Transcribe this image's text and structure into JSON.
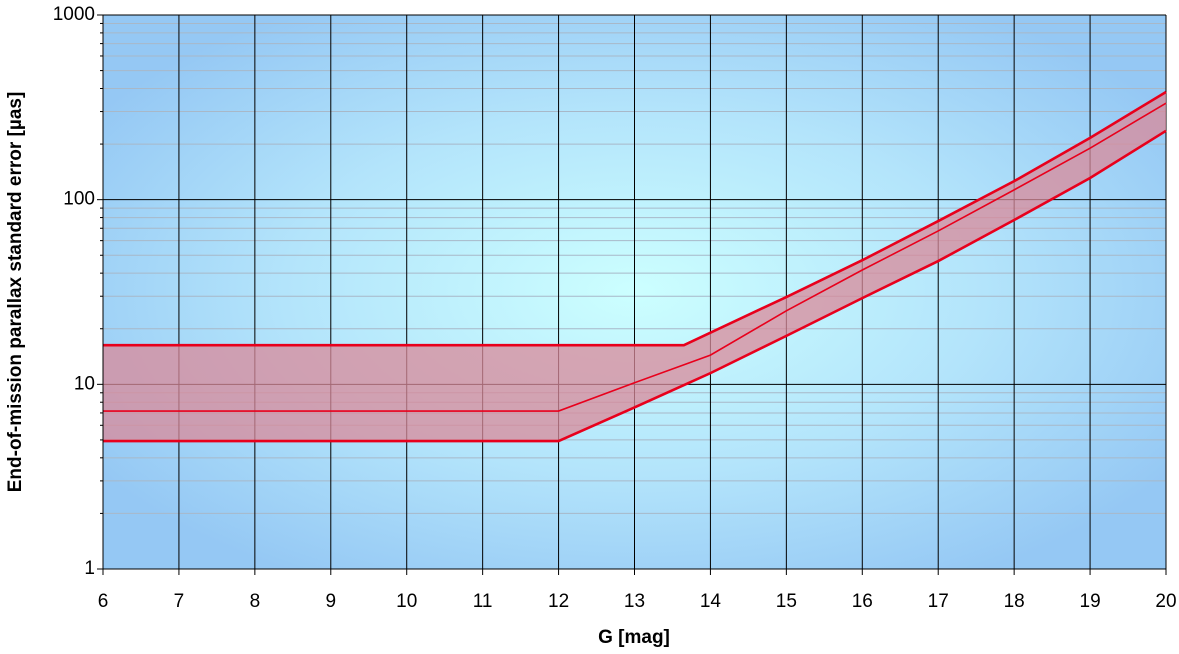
{
  "chart_data": {
    "type": "line",
    "x_label": "G [mag]",
    "y_label": "End-of-mission parallax standard error [µas]",
    "log_y": true,
    "grid": true,
    "minor_grid": true,
    "band_color": "#d98a9a",
    "xlim": [
      6,
      20
    ],
    "xticks": [
      6,
      7,
      8,
      9,
      10,
      11,
      12,
      13,
      14,
      15,
      16,
      17,
      18,
      19,
      20
    ],
    "ylim": [
      1,
      1000
    ],
    "yticks": [
      1,
      10,
      100,
      1000
    ],
    "series": [
      {
        "color": "#e8001c",
        "x": [
          6,
          13.65,
          15,
          16,
          17,
          18,
          19,
          20
        ],
        "values": [
          16.3,
          16.3,
          29.7,
          47,
          76.6,
          126,
          216,
          383
        ]
      },
      {
        "color": "#e8001c",
        "x": [
          6,
          12,
          13,
          14,
          15,
          16,
          17,
          18,
          19,
          20
        ],
        "values": [
          7.17,
          7.17,
          10.2,
          14.4,
          25,
          41.6,
          67.7,
          113,
          190,
          333
        ]
      },
      {
        "color": "#e8001c",
        "x": [
          6,
          12,
          13,
          14,
          15,
          16,
          17,
          18,
          19,
          20
        ],
        "values": [
          4.93,
          4.93,
          7.5,
          11.5,
          18.3,
          29.3,
          46.5,
          77.6,
          131,
          236
        ]
      }
    ]
  }
}
